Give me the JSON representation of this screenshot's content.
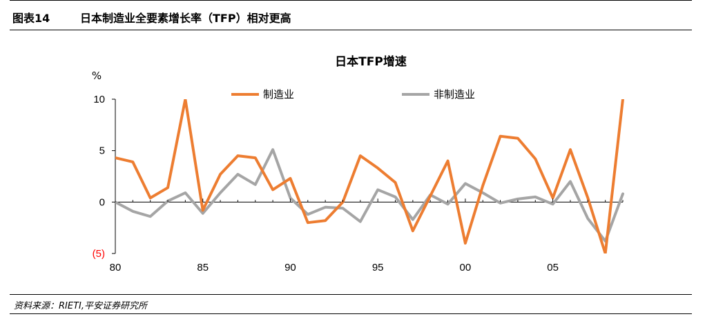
{
  "header": {
    "figure_number": "图表14",
    "figure_title": "日本制造业全要素增长率（TFP）相对更高"
  },
  "footer": {
    "source": "资料来源：RIETI,平安证券研究所"
  },
  "colors": {
    "manufacturing": "#ED7D31",
    "non_manufacturing": "#A5A5A5",
    "negative_label": "#FF0000"
  },
  "chart_data": {
    "type": "line",
    "title": "日本TFP增速",
    "ylabel": "%",
    "xlabel": "",
    "x_years": [
      1980,
      1981,
      1982,
      1983,
      1984,
      1985,
      1986,
      1987,
      1988,
      1989,
      1990,
      1991,
      1992,
      1993,
      1994,
      1995,
      1996,
      1997,
      1998,
      1999,
      2000,
      2001,
      2002,
      2003,
      2004,
      2005,
      2006,
      2007,
      2008,
      2009
    ],
    "x_ticks": [
      {
        "value": 1980,
        "label": "80"
      },
      {
        "value": 1985,
        "label": "85"
      },
      {
        "value": 1990,
        "label": "90"
      },
      {
        "value": 1995,
        "label": "95"
      },
      {
        "value": 2000,
        "label": "00"
      },
      {
        "value": 2005,
        "label": "05"
      }
    ],
    "y_ticks": [
      {
        "value": 10,
        "label": "10"
      },
      {
        "value": 5,
        "label": "5"
      },
      {
        "value": 0,
        "label": "0"
      },
      {
        "value": -5,
        "label": "(5)"
      }
    ],
    "ylim": [
      -5,
      10
    ],
    "xlim": [
      1980,
      2009
    ],
    "legend_position": "top",
    "series": [
      {
        "name": "制造业",
        "color_key": "manufacturing",
        "values": [
          4.3,
          3.9,
          0.4,
          1.4,
          10.0,
          -0.8,
          2.7,
          4.5,
          4.3,
          1.2,
          2.3,
          -2.0,
          -1.8,
          0.0,
          4.5,
          3.3,
          1.9,
          -2.8,
          0.6,
          4.0,
          -4.0,
          1.6,
          6.4,
          6.2,
          4.2,
          0.4,
          5.1,
          0.4,
          -5.0,
          10.0
        ]
      },
      {
        "name": "非制造业",
        "color_key": "non_manufacturing",
        "values": [
          0.0,
          -0.9,
          -1.4,
          0.1,
          0.9,
          -1.1,
          0.9,
          2.7,
          1.7,
          5.1,
          0.4,
          -1.2,
          -0.5,
          -0.6,
          -1.9,
          1.2,
          0.5,
          -1.7,
          0.7,
          -0.2,
          1.8,
          0.9,
          -0.1,
          0.3,
          0.5,
          -0.2,
          2.0,
          -1.6,
          -3.8,
          0.8
        ]
      }
    ]
  }
}
